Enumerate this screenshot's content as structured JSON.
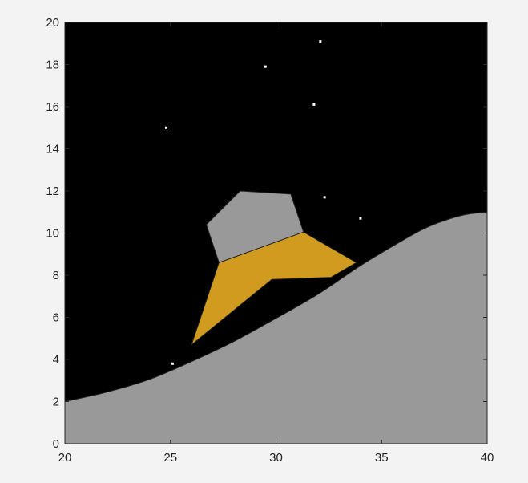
{
  "chart_data": {
    "type": "scene",
    "xlim": [
      20,
      40
    ],
    "ylim": [
      0,
      20
    ],
    "x_ticks": [
      "20",
      "25",
      "30",
      "35",
      "40"
    ],
    "y_ticks": [
      "0",
      "2",
      "4",
      "6",
      "8",
      "10",
      "12",
      "14",
      "16",
      "18",
      "20"
    ],
    "grid": false,
    "colors": {
      "sky": "#000000",
      "terrain": "#999999",
      "lander_body": "#d09b1e",
      "lander_top": "#999999",
      "star": "#ffffff",
      "outline": "#262626"
    },
    "terrain_curve": [
      [
        20,
        2.0
      ],
      [
        22,
        2.45
      ],
      [
        24,
        3.05
      ],
      [
        26,
        3.9
      ],
      [
        28,
        4.85
      ],
      [
        30,
        5.95
      ],
      [
        32,
        7.1
      ],
      [
        34,
        8.45
      ],
      [
        36,
        9.65
      ],
      [
        37,
        10.2
      ],
      [
        38,
        10.6
      ],
      [
        39,
        10.88
      ],
      [
        40,
        11.0
      ]
    ],
    "lander_body": [
      [
        27.3,
        8.6
      ],
      [
        31.3,
        10.05
      ],
      [
        33.8,
        8.6
      ],
      [
        32.6,
        7.9
      ],
      [
        29.8,
        7.8
      ],
      [
        26.0,
        4.7
      ]
    ],
    "lander_top": [
      [
        27.3,
        8.6
      ],
      [
        26.7,
        10.4
      ],
      [
        28.3,
        12.0
      ],
      [
        30.7,
        11.85
      ],
      [
        31.3,
        10.05
      ]
    ],
    "stars": [
      [
        32.1,
        19.1
      ],
      [
        29.5,
        17.9
      ],
      [
        31.8,
        16.1
      ],
      [
        24.8,
        15.0
      ],
      [
        32.3,
        11.7
      ],
      [
        34.0,
        10.7
      ],
      [
        25.1,
        3.8
      ]
    ]
  }
}
